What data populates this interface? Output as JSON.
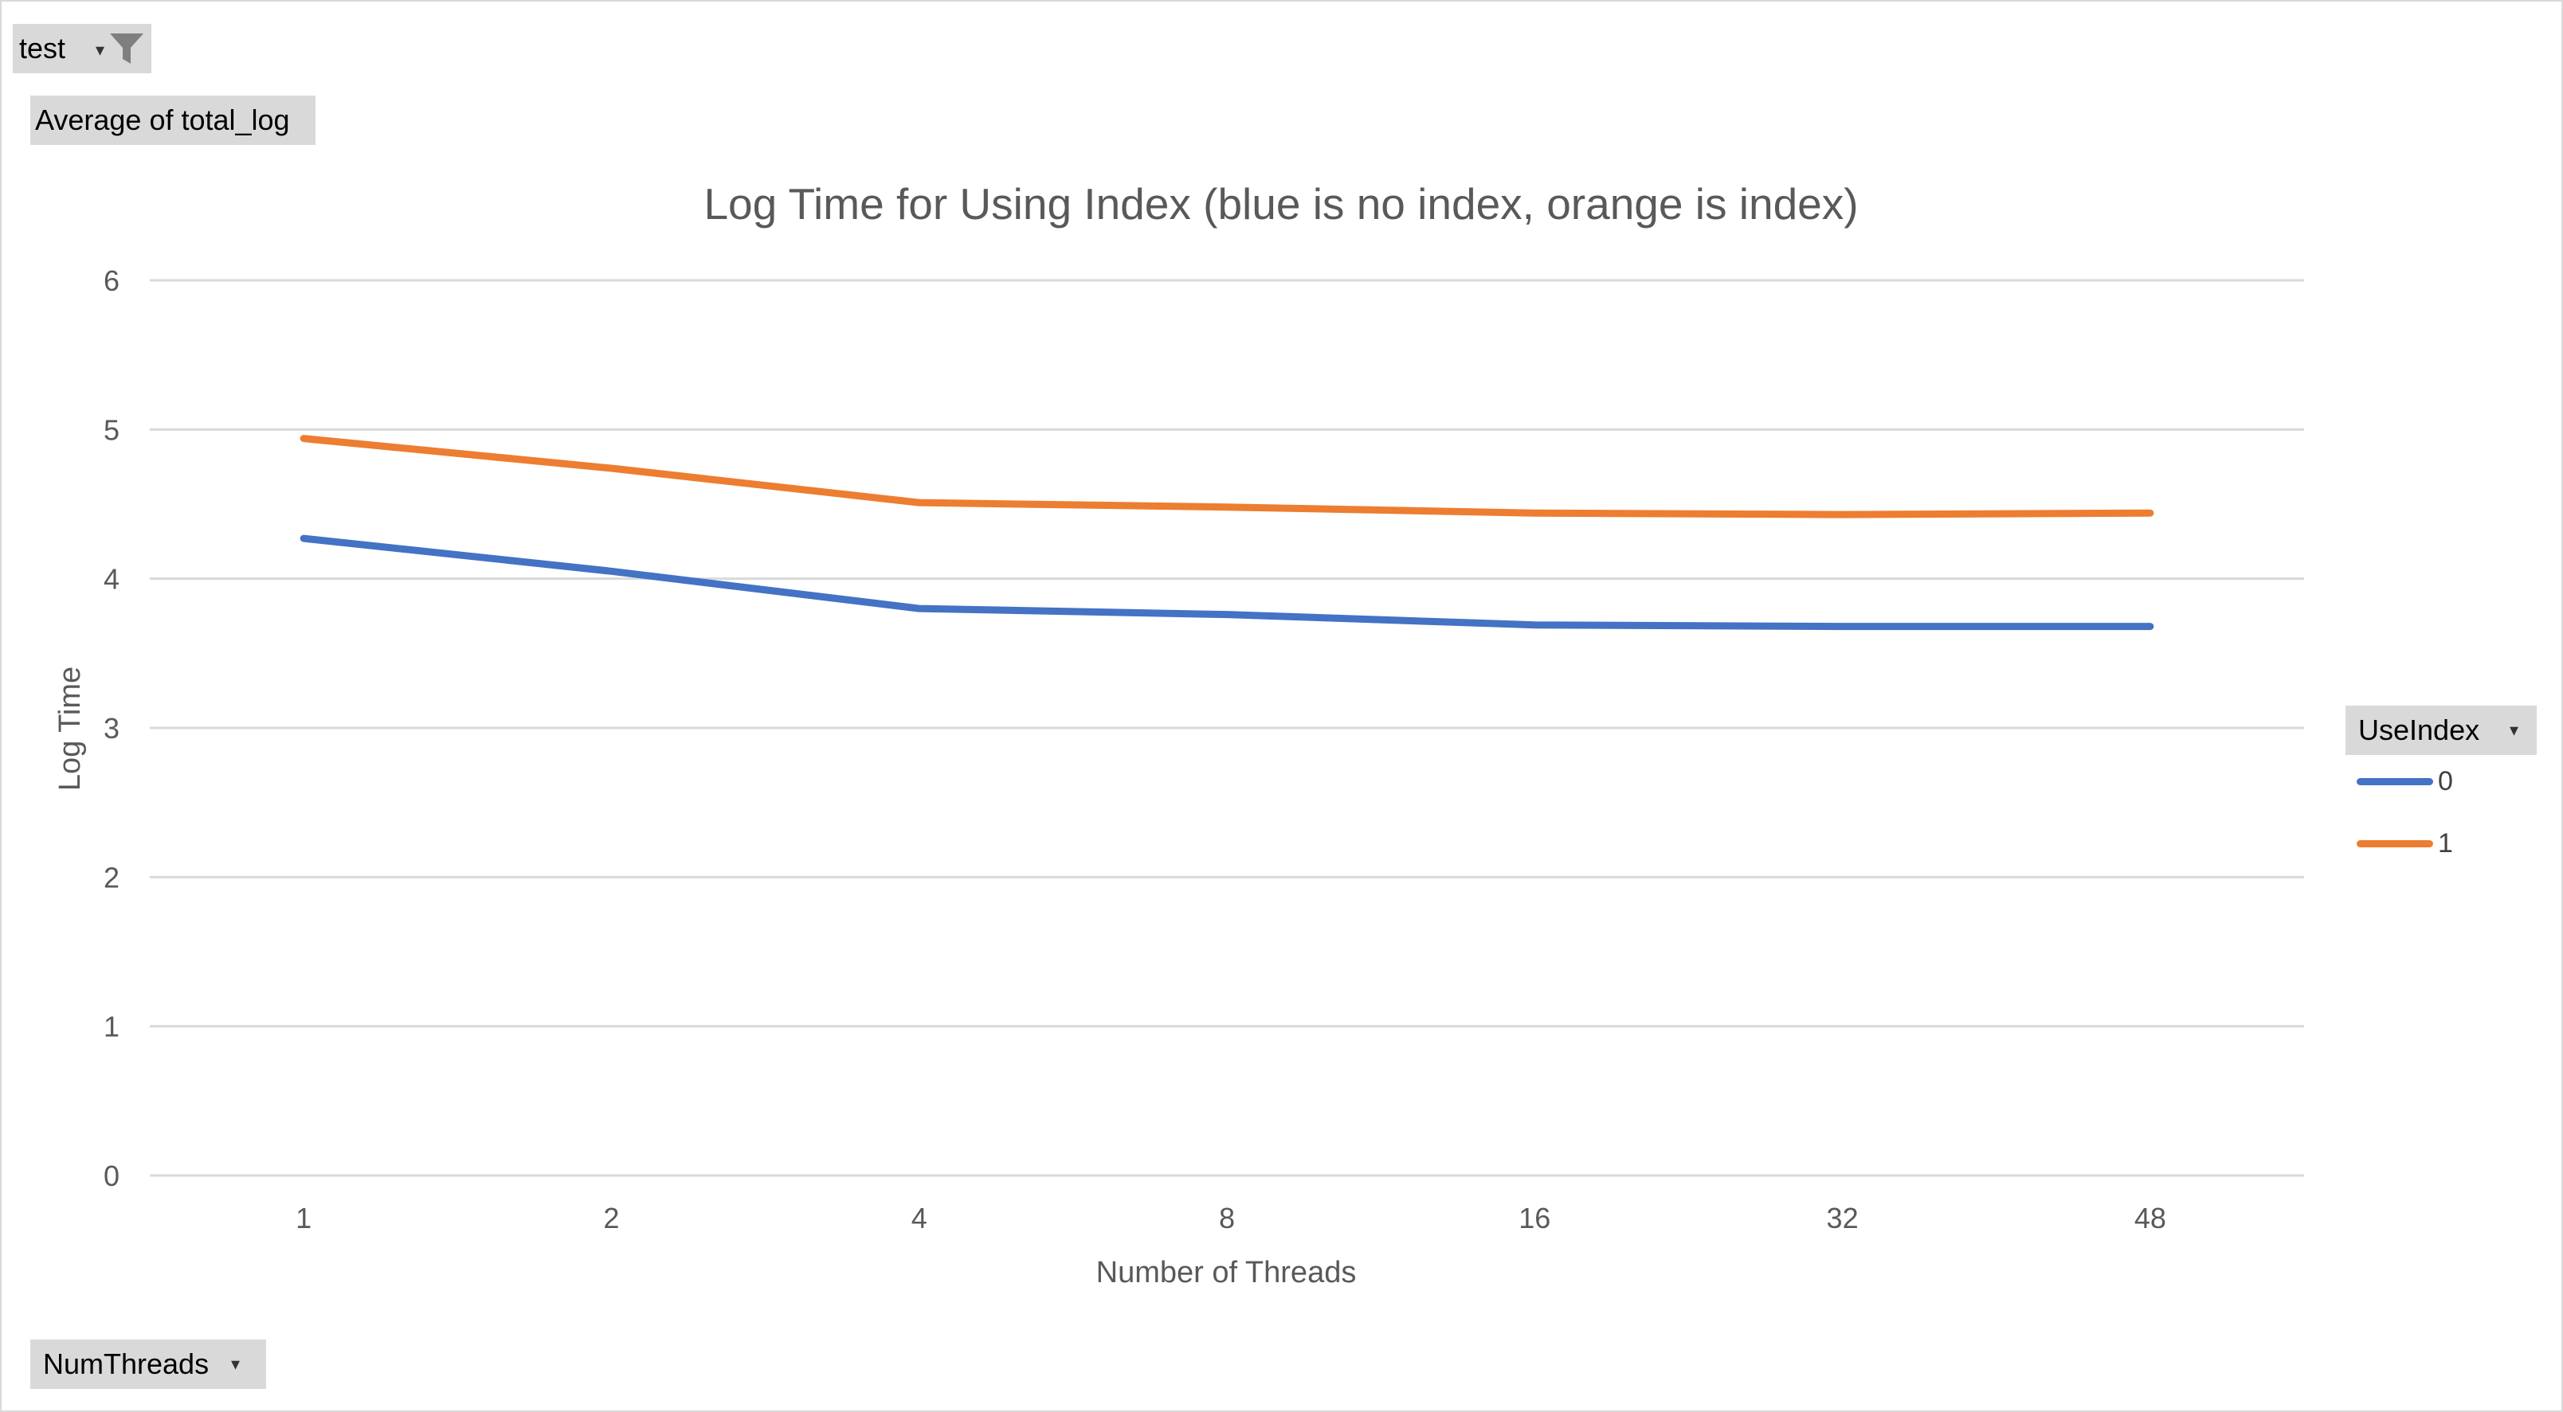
{
  "filters": {
    "page_filter_label": "test",
    "values_label": "Average of total_log",
    "axis_field_label": "NumThreads",
    "legend_field_label": "UseIndex",
    "dropdown_glyph": "▾",
    "filter_icon": "funnel-icon"
  },
  "chart_data": {
    "type": "line",
    "title": "Log Time for Using Index (blue is no index, orange is index)",
    "xlabel": "Number of Threads",
    "ylabel": "Log Time",
    "categories": [
      "1",
      "2",
      "4",
      "8",
      "16",
      "32",
      "48"
    ],
    "ylim": [
      0,
      6
    ],
    "yticks": [
      "0",
      "1",
      "2",
      "3",
      "4",
      "5",
      "6"
    ],
    "grid": true,
    "legend_position": "right",
    "legend_title": "UseIndex",
    "series": [
      {
        "name": "0",
        "color": "#4472c4",
        "values": [
          4.27,
          4.05,
          3.8,
          3.76,
          3.69,
          3.68,
          3.68
        ]
      },
      {
        "name": "1",
        "color": "#ed7d31",
        "values": [
          4.94,
          4.74,
          4.51,
          4.48,
          4.44,
          4.43,
          4.44
        ]
      }
    ]
  }
}
